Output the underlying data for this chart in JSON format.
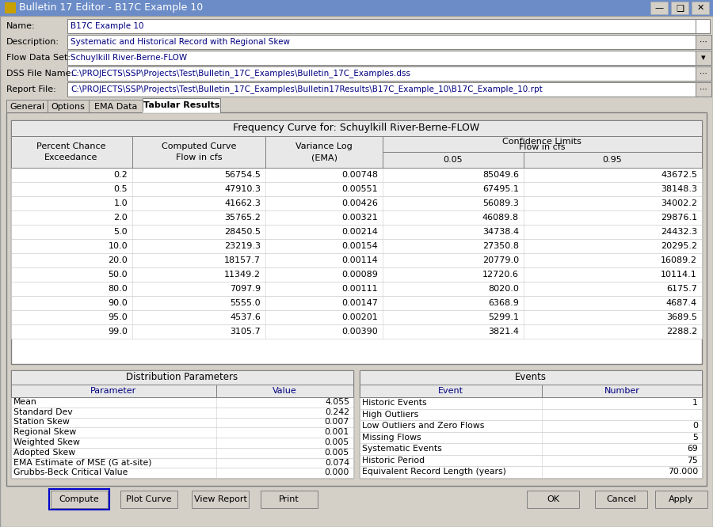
{
  "title_bar": "Bulletin 17 Editor - B17C Example 10",
  "name_val": "B17C Example 10",
  "desc_val": "Systematic and Historical Record with Regional Skew",
  "flow_val": "Schuylkill River-Berne-FLOW",
  "dss_val": "C:\\PROJECTS\\SSP\\Projects\\Test\\Bulletin_17C_Examples\\Bulletin_17C_Examples.dss",
  "rpt_val": "C:\\PROJECTS\\SSP\\Projects\\Test\\Bulletin_17C_Examples\\Bulletin17Results\\B17C_Example_10\\B17C_Example_10.rpt",
  "tabs": [
    "General",
    "Options",
    "EMA Data",
    "Tabular Results"
  ],
  "active_tab": "Tabular Results",
  "freq_table_title": "Frequency Curve for: Schuylkill River-Berne-FLOW",
  "freq_data": [
    [
      "0.2",
      "56754.5",
      "0.00748",
      "85049.6",
      "43672.5"
    ],
    [
      "0.5",
      "47910.3",
      "0.00551",
      "67495.1",
      "38148.3"
    ],
    [
      "1.0",
      "41662.3",
      "0.00426",
      "56089.3",
      "34002.2"
    ],
    [
      "2.0",
      "35765.2",
      "0.00321",
      "46089.8",
      "29876.1"
    ],
    [
      "5.0",
      "28450.5",
      "0.00214",
      "34738.4",
      "24432.3"
    ],
    [
      "10.0",
      "23219.3",
      "0.00154",
      "27350.8",
      "20295.2"
    ],
    [
      "20.0",
      "18157.7",
      "0.00114",
      "20779.0",
      "16089.2"
    ],
    [
      "50.0",
      "11349.2",
      "0.00089",
      "12720.6",
      "10114.1"
    ],
    [
      "80.0",
      "7097.9",
      "0.00111",
      "8020.0",
      "6175.7"
    ],
    [
      "90.0",
      "5555.0",
      "0.00147",
      "6368.9",
      "4687.4"
    ],
    [
      "95.0",
      "4537.6",
      "0.00201",
      "5299.1",
      "3689.5"
    ],
    [
      "99.0",
      "3105.7",
      "0.00390",
      "3821.4",
      "2288.2"
    ]
  ],
  "dist_params": [
    [
      "Mean",
      "4.055"
    ],
    [
      "Standard Dev",
      "0.242"
    ],
    [
      "Station Skew",
      "0.007"
    ],
    [
      "Regional Skew",
      "0.001"
    ],
    [
      "Weighted Skew",
      "0.005"
    ],
    [
      "Adopted Skew",
      "0.005"
    ],
    [
      "EMA Estimate of MSE (G at-site)",
      "0.074"
    ],
    [
      "Grubbs-Beck Critical Value",
      "0.000"
    ]
  ],
  "events": [
    [
      "Historic Events",
      "1"
    ],
    [
      "High Outliers",
      ""
    ],
    [
      "Low Outliers and Zero Flows",
      "0"
    ],
    [
      "Missing Flows",
      "5"
    ],
    [
      "Systematic Events",
      "69"
    ],
    [
      "Historic Period",
      "75"
    ],
    [
      "Equivalent Record Length (years)",
      "70.000"
    ]
  ],
  "bg_color": "#d4d0c8",
  "white": "#ffffff",
  "header_bg": "#e8e8e8",
  "blue_text": "#000080",
  "titlebar_bg": "#0a246a",
  "titlebar_text": "#ffffff"
}
